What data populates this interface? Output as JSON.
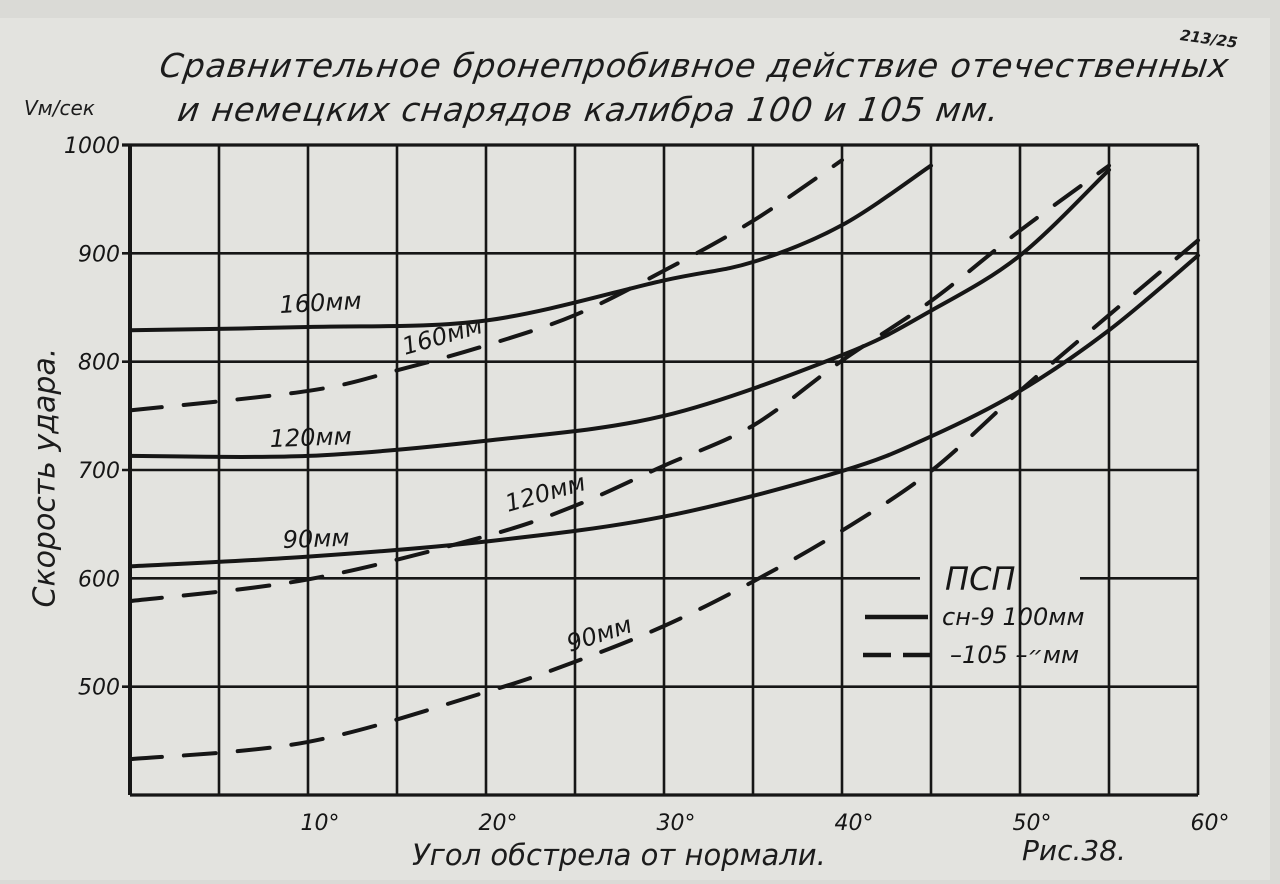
{
  "chart_data": {
    "type": "line",
    "title": "Сравнительное бронепробивное действие отечественных и немецких снарядов калибра 100 и 105 мм.",
    "title_lines": [
      "Сравнительное бронепробивное действие отечественных",
      "и немецких снарядов калибра 100 и 105 мм."
    ],
    "corner_note": "213/25",
    "ylabel": "Скорость удара.",
    "yunit": "Vм/сек",
    "xlabel": "Угол обстрела от нормали.",
    "figure_label": "Рис.38.",
    "xlim": [
      0,
      60
    ],
    "ylim": [
      400,
      1000
    ],
    "x_ticks": [
      "10°",
      "20°",
      "30°",
      "40°",
      "50°",
      "60°"
    ],
    "x_tick_values": [
      10,
      20,
      30,
      40,
      50,
      60
    ],
    "y_ticks": [
      "1000",
      "900",
      "800",
      "700",
      "600",
      "500"
    ],
    "y_tick_values": [
      1000,
      900,
      800,
      700,
      600,
      500
    ],
    "grid": true,
    "grid_x_step": 5,
    "grid_y_step": 100,
    "legend": {
      "title": "ПСП",
      "placement": "lower-right",
      "items": [
        {
          "label": "сн-9 100мм",
          "style": "solid"
        },
        {
          "label": "–״– 105мм",
          "style": "dashed"
        }
      ]
    },
    "series": [
      {
        "name": "160мм",
        "style": "solid",
        "x": [
          0,
          10,
          20,
          30,
          35,
          40,
          45
        ],
        "y": [
          829,
          832,
          838,
          875,
          892,
          926,
          981
        ]
      },
      {
        "name": "160мм",
        "style": "dashed",
        "x": [
          0,
          10,
          15,
          20,
          25,
          30,
          35,
          40
        ],
        "y": [
          755,
          773,
          792,
          815,
          843,
          884,
          930,
          986
        ]
      },
      {
        "name": "120мм",
        "style": "solid",
        "x": [
          0,
          10,
          20,
          30,
          40,
          45,
          50,
          55
        ],
        "y": [
          713,
          713,
          727,
          750,
          806,
          847,
          898,
          977
        ]
      },
      {
        "name": "120мм",
        "style": "dashed",
        "x": [
          0,
          10,
          20,
          25,
          30,
          35,
          40,
          45,
          50,
          55
        ],
        "y": [
          579,
          599,
          639,
          667,
          704,
          741,
          801,
          856,
          921,
          981
        ]
      },
      {
        "name": "90мм",
        "style": "solid",
        "x": [
          0,
          10,
          20,
          30,
          40,
          45,
          50,
          55,
          60
        ],
        "y": [
          611,
          620,
          634,
          657,
          699,
          731,
          773,
          829,
          898
        ]
      },
      {
        "name": "90мм",
        "style": "dashed",
        "x": [
          0,
          10,
          20,
          25,
          30,
          35,
          40,
          45,
          50,
          55,
          60
        ],
        "y": [
          433,
          449,
          495,
          523,
          556,
          597,
          644,
          699,
          773,
          843,
          912
        ]
      }
    ],
    "line_color": "#161616"
  }
}
